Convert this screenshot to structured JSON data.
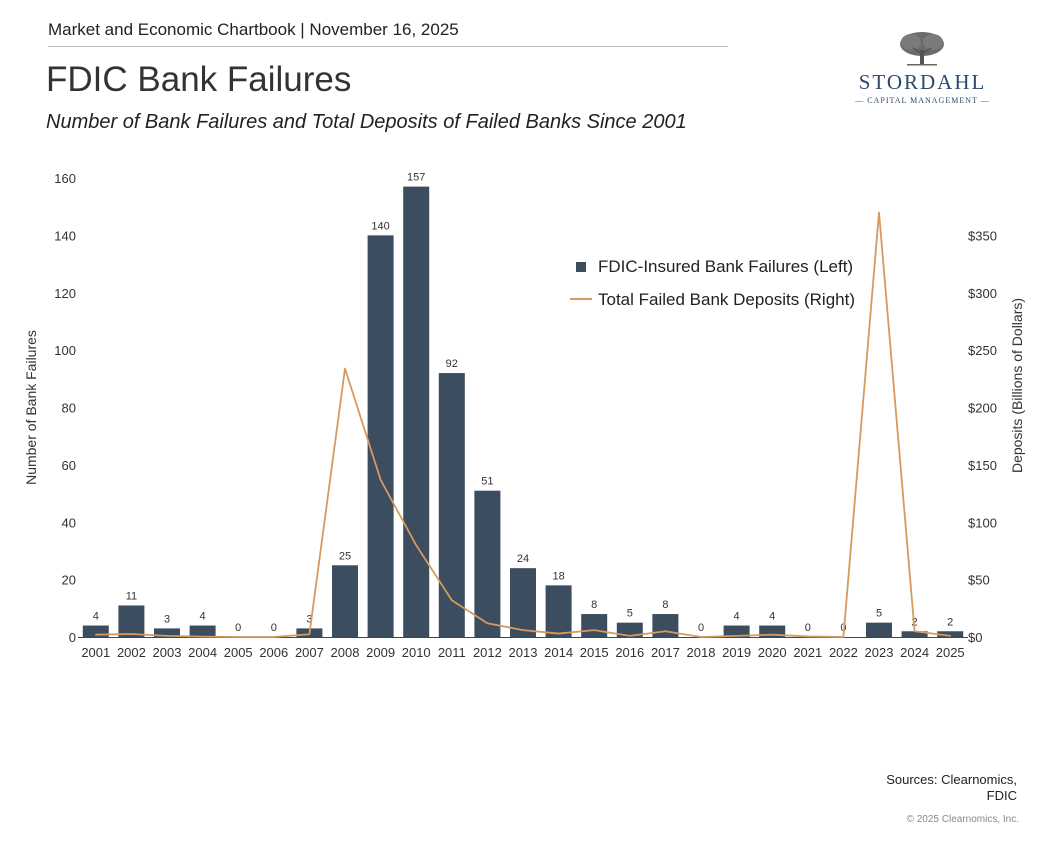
{
  "header": {
    "chartbook": "Market and Economic Chartbook | November 16, 2025",
    "title": "FDIC Bank Failures",
    "subtitle": "Number of Bank Failures and Total Deposits of Failed Banks Since 2001"
  },
  "logo": {
    "name": "STORDAHL",
    "tagline": "CAPITAL MANAGEMENT",
    "icon": "tree-icon"
  },
  "footer": {
    "sources_line1": "Sources: Clearnomics,",
    "sources_line2": "FDIC",
    "copyright": "© 2025 Clearnomics, Inc."
  },
  "chart_data": {
    "type": "bar",
    "categories": [
      "2001",
      "2002",
      "2003",
      "2004",
      "2005",
      "2006",
      "2007",
      "2008",
      "2009",
      "2010",
      "2011",
      "2012",
      "2013",
      "2014",
      "2015",
      "2016",
      "2017",
      "2018",
      "2019",
      "2020",
      "2021",
      "2022",
      "2023",
      "2024",
      "2025"
    ],
    "series": [
      {
        "name": "FDIC-Insured Bank Failures (Left)",
        "type": "bar",
        "axis": "left",
        "color": "#3b4d5e",
        "values": [
          4,
          11,
          3,
          4,
          0,
          0,
          3,
          25,
          140,
          157,
          92,
          51,
          24,
          18,
          8,
          5,
          8,
          0,
          4,
          4,
          0,
          0,
          5,
          2,
          2
        ]
      },
      {
        "name": "Total Failed Bank Deposits (Right)",
        "type": "line",
        "axis": "right",
        "color": "#d69a5e",
        "values": [
          2,
          2.6,
          1,
          0.3,
          0,
          0,
          2.4,
          234,
          137,
          80,
          32,
          12,
          6,
          3,
          6,
          1,
          5,
          0,
          1,
          2,
          0.5,
          0,
          370,
          5,
          1
        ]
      }
    ],
    "ylabel_left": "Number of Bank Failures",
    "ylabel_right": "Deposits (Billions of Dollars)",
    "ylim_left": [
      0,
      160
    ],
    "ylim_right": [
      0,
      400
    ],
    "yticks_left": [
      0,
      20,
      40,
      60,
      80,
      100,
      120,
      140,
      160
    ],
    "yticks_right": [
      0,
      50,
      100,
      150,
      200,
      250,
      300,
      350
    ],
    "yticks_right_labels": [
      "$0",
      "$50",
      "$100",
      "$150",
      "$200",
      "$250",
      "$300",
      "$350"
    ],
    "grid": false,
    "legend_position": "top-right"
  }
}
